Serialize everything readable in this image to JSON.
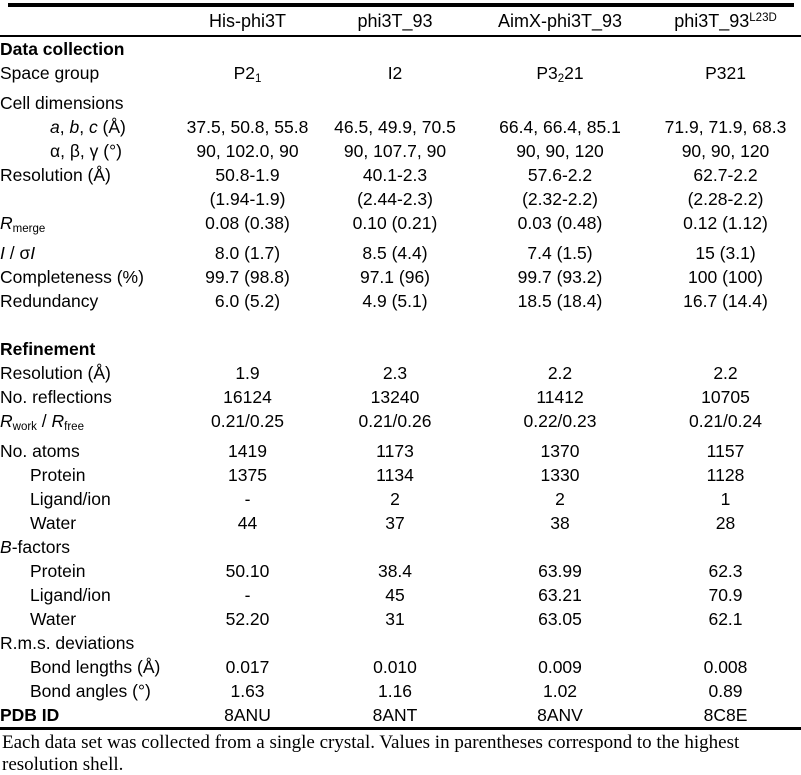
{
  "table": {
    "header": [
      "",
      "His-phi3T",
      "phi3T_93",
      "AimX-phi3T_93",
      [
        {
          "t": "phi3T_93"
        },
        {
          "t": "L23D",
          "s": "sup"
        }
      ]
    ],
    "rows": [
      {
        "label": [
          {
            "t": "Data collection",
            "s": "b"
          }
        ],
        "indent": 0,
        "values": [
          "",
          "",
          "",
          ""
        ]
      },
      {
        "label": "Space group",
        "indent": 0,
        "values": [
          [
            {
              "t": "P2"
            },
            {
              "t": "1",
              "s": "sub"
            }
          ],
          "I2",
          [
            {
              "t": "P3"
            },
            {
              "t": "2",
              "s": "sub"
            },
            {
              "t": "21"
            }
          ],
          "P321"
        ]
      },
      {
        "label": "Cell dimensions",
        "indent": 0,
        "values": [
          "",
          "",
          "",
          ""
        ]
      },
      {
        "label": [
          {
            "t": "a",
            "s": "i"
          },
          {
            "t": ", "
          },
          {
            "t": "b",
            "s": "i"
          },
          {
            "t": ", "
          },
          {
            "t": "c",
            "s": "i"
          },
          {
            "t": " (Å)"
          }
        ],
        "indent": 2,
        "values": [
          "37.5, 50.8, 55.8",
          "46.5, 49.9, 70.5",
          "66.4, 66.4, 85.1",
          "71.9, 71.9, 68.3"
        ]
      },
      {
        "label": "α, β, γ (°)",
        "indent": 2,
        "values": [
          "90, 102.0, 90",
          "90, 107.7, 90",
          "90, 90, 120",
          "90, 90, 120"
        ]
      },
      {
        "label": "Resolution (Å)",
        "indent": 0,
        "values": [
          "50.8-1.9",
          "40.1-2.3",
          "57.6-2.2",
          "62.7-2.2"
        ]
      },
      {
        "label": "",
        "indent": 0,
        "values": [
          "(1.94-1.9)",
          "(2.44-2.3)",
          "(2.32-2.2)",
          "(2.28-2.2)"
        ]
      },
      {
        "label": [
          {
            "t": "R",
            "s": "i"
          },
          {
            "t": "merge",
            "s": "sub"
          }
        ],
        "indent": 0,
        "values": [
          "0.08 (0.38)",
          "0.10 (0.21)",
          "0.03 (0.48)",
          "0.12 (1.12)"
        ]
      },
      {
        "label": [
          {
            "t": "I",
            "s": "i"
          },
          {
            "t": " / σ"
          },
          {
            "t": "I",
            "s": "i"
          }
        ],
        "indent": 0,
        "values": [
          "8.0 (1.7)",
          "8.5 (4.4)",
          "7.4 (1.5)",
          "15 (3.1)"
        ]
      },
      {
        "label": "Completeness (%)",
        "indent": 0,
        "values": [
          "99.7 (98.8)",
          "97.1 (96)",
          "99.7 (93.2)",
          "100 (100)"
        ]
      },
      {
        "label": "Redundancy",
        "indent": 0,
        "values": [
          "6.0 (5.2)",
          "4.9 (5.1)",
          "18.5 (18.4)",
          "16.7 (14.4)"
        ]
      },
      {
        "label": "",
        "indent": 0,
        "values": [
          "",
          "",
          "",
          ""
        ],
        "spacer": true
      },
      {
        "label": [
          {
            "t": "Refinement",
            "s": "b"
          }
        ],
        "indent": 0,
        "values": [
          "",
          "",
          "",
          ""
        ]
      },
      {
        "label": "Resolution (Å)",
        "indent": 0,
        "values": [
          "1.9",
          "2.3",
          "2.2",
          "2.2"
        ]
      },
      {
        "label": "No. reflections",
        "indent": 0,
        "values": [
          "16124",
          "13240",
          "11412",
          "10705"
        ]
      },
      {
        "label": [
          {
            "t": "R",
            "s": "i"
          },
          {
            "t": "work",
            "s": "sub"
          },
          {
            "t": " / "
          },
          {
            "t": "R",
            "s": "i"
          },
          {
            "t": "free",
            "s": "sub"
          }
        ],
        "indent": 0,
        "values": [
          "0.21/0.25",
          "0.21/0.26",
          "0.22/0.23",
          "0.21/0.24"
        ]
      },
      {
        "label": "No. atoms",
        "indent": 0,
        "values": [
          "1419",
          "1173",
          "1370",
          "1157"
        ]
      },
      {
        "label": "Protein",
        "indent": 1,
        "values": [
          "1375",
          "1134",
          "1330",
          "1128"
        ]
      },
      {
        "label": "Ligand/ion",
        "indent": 1,
        "values": [
          "-",
          "2",
          "2",
          "1"
        ]
      },
      {
        "label": "Water",
        "indent": 1,
        "values": [
          "44",
          "37",
          "38",
          "28"
        ]
      },
      {
        "label": [
          {
            "t": "B",
            "s": "i"
          },
          {
            "t": "-factors"
          }
        ],
        "indent": 0,
        "values": [
          "",
          "",
          "",
          ""
        ]
      },
      {
        "label": "Protein",
        "indent": 1,
        "values": [
          "50.10",
          "38.4",
          "63.99",
          "62.3"
        ]
      },
      {
        "label": "Ligand/ion",
        "indent": 1,
        "values": [
          "-",
          "45",
          "63.21",
          "70.9"
        ]
      },
      {
        "label": "Water",
        "indent": 1,
        "values": [
          "52.20",
          "31",
          "63.05",
          "62.1"
        ]
      },
      {
        "label": "R.m.s. deviations",
        "indent": 0,
        "values": [
          "",
          "",
          "",
          ""
        ]
      },
      {
        "label": "Bond lengths (Å)",
        "indent": 1,
        "values": [
          "0.017",
          "0.010",
          "0.009",
          "0.008"
        ]
      },
      {
        "label": "Bond angles (°)",
        "indent": 1,
        "values": [
          "1.63",
          "1.16",
          "1.02",
          "0.89"
        ]
      },
      {
        "label": [
          {
            "t": "PDB ID",
            "s": "b"
          }
        ],
        "indent": 0,
        "values": [
          "8ANU",
          "8ANT",
          "8ANV",
          "8C8E"
        ]
      }
    ]
  },
  "footnote": "Each data set was collected from a single crystal. Values in parentheses correspond to the highest resolution shell."
}
